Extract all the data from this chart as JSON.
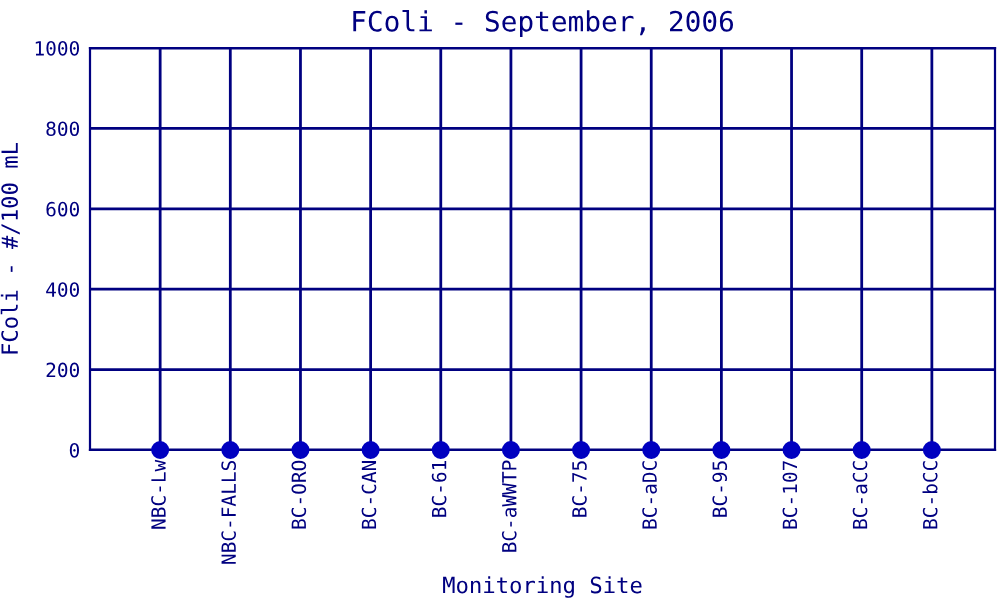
{
  "chart_data": {
    "type": "scatter",
    "title": "FColi - September, 2006",
    "xlabel": "Monitoring Site",
    "ylabel": "FColi - #/100 mL",
    "categories": [
      "NBC-Lw",
      "NBC-FALLS",
      "BC-ORO",
      "BC-CAN",
      "BC-61",
      "BC-aWWTP",
      "BC-75",
      "BC-aDC",
      "BC-95",
      "BC-107",
      "BC-aCC",
      "BC-bCC"
    ],
    "values": [
      0,
      0,
      0,
      0,
      0,
      0,
      0,
      0,
      0,
      0,
      0,
      0
    ],
    "color": "#0000c0",
    "marker": "circle",
    "ylim": [
      0,
      1000
    ],
    "yticks": [
      0,
      200,
      400,
      600,
      800,
      1000
    ],
    "grid": true
  }
}
